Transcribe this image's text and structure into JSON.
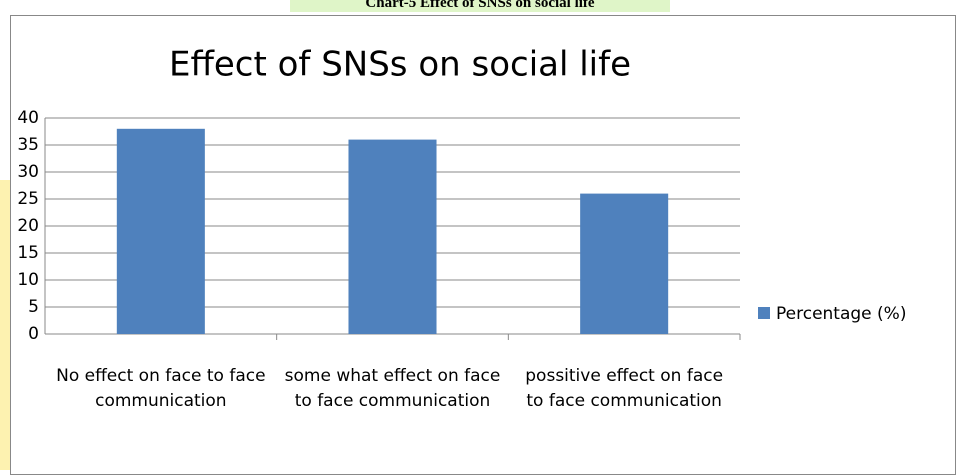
{
  "caption": "Chart-5 Effect of SNSs on social life",
  "chart_data": {
    "type": "bar",
    "title": "Effect of SNSs on social life",
    "categories": [
      "No effect on face to face communication",
      "some what effect on face to face communication",
      "possitive effect on face to face communication"
    ],
    "series": [
      {
        "name": "Percentage (%)",
        "color": "#4f81bd",
        "values": [
          38,
          36,
          26
        ]
      }
    ],
    "ylim": [
      0,
      40
    ],
    "yticks": [
      0,
      5,
      10,
      15,
      20,
      25,
      30,
      35,
      40
    ],
    "grid": true,
    "legend": "right"
  }
}
